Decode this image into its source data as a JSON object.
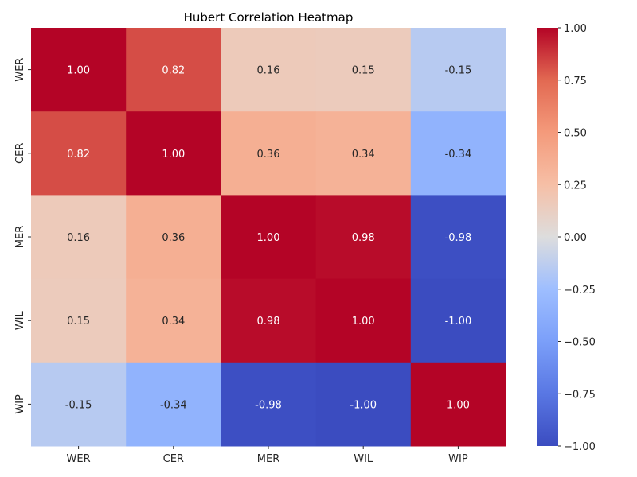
{
  "chart_data": {
    "type": "heatmap",
    "title": "Hubert Correlation Heatmap",
    "xlabel": "",
    "ylabel": "",
    "x_categories": [
      "WER",
      "CER",
      "MER",
      "WIL",
      "WIP"
    ],
    "y_categories": [
      "WER",
      "CER",
      "MER",
      "WIL",
      "WIP"
    ],
    "matrix": [
      [
        1.0,
        0.82,
        0.16,
        0.15,
        -0.15
      ],
      [
        0.82,
        1.0,
        0.36,
        0.34,
        -0.34
      ],
      [
        0.16,
        0.36,
        1.0,
        0.98,
        -0.98
      ],
      [
        0.15,
        0.34,
        0.98,
        1.0,
        -1.0
      ],
      [
        -0.15,
        -0.34,
        -0.98,
        -1.0,
        1.0
      ]
    ],
    "cell_labels": [
      [
        "1.00",
        "0.82",
        "0.16",
        "0.15",
        "-0.15"
      ],
      [
        "0.82",
        "1.00",
        "0.36",
        "0.34",
        "-0.34"
      ],
      [
        "0.16",
        "0.36",
        "1.00",
        "0.98",
        "-0.98"
      ],
      [
        "0.15",
        "0.34",
        "0.98",
        "1.00",
        "-1.00"
      ],
      [
        "-0.15",
        "-0.34",
        "-0.98",
        "-1.00",
        "1.00"
      ]
    ],
    "colormap": "coolwarm",
    "vmin": -1.0,
    "vmax": 1.0,
    "colorbar_ticks": [
      1.0,
      0.75,
      0.5,
      0.25,
      0.0,
      -0.25,
      -0.5,
      -0.75,
      -1.0
    ],
    "colorbar_tick_labels": [
      "1.00",
      "0.75",
      "0.50",
      "0.25",
      "0.00",
      "−0.25",
      "−0.50",
      "−0.75",
      "−1.00"
    ],
    "grid": false
  }
}
